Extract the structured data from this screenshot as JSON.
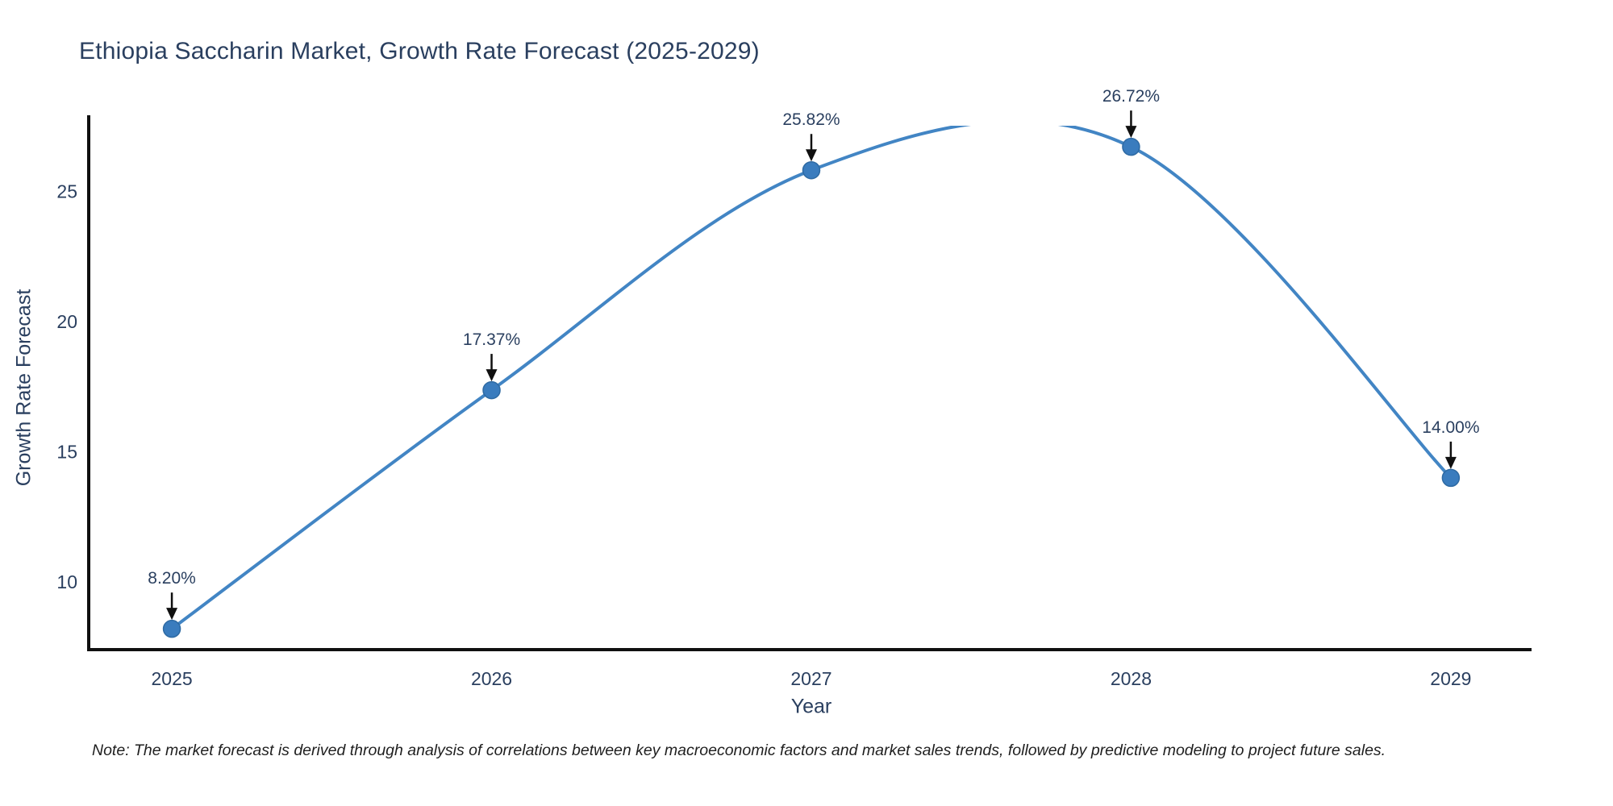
{
  "title": "Ethiopia Saccharin Market, Growth Rate Forecast (2025-2029)",
  "note": "Note: The market forecast is derived through analysis of correlations between key macroeconomic factors and market sales trends, followed by predictive modeling to project future sales.",
  "chart_data": {
    "type": "line",
    "line_shape": "spline",
    "title": "Ethiopia Saccharin Market, Growth Rate Forecast (2025-2029)",
    "xlabel": "Year",
    "ylabel": "Growth Rate Forecast",
    "x": [
      2025,
      2026,
      2027,
      2028,
      2029
    ],
    "values": [
      8.2,
      17.37,
      25.82,
      26.72,
      14.0
    ],
    "point_labels": [
      "8.20%",
      "17.37%",
      "25.82%",
      "26.72%",
      "14.00%"
    ],
    "xticks": [
      2025,
      2026,
      2027,
      2028,
      2029
    ],
    "yticks": [
      10,
      15,
      20,
      25
    ],
    "xlim": [
      2024.74,
      2029.25
    ],
    "ylim": [
      7.4,
      27.53
    ],
    "grid": false,
    "legend": false,
    "annotations_have_arrows": true,
    "colors": {
      "line": "#4285c4",
      "marker_fill": "#3a7cbe",
      "marker_edge": "#2e6aa3",
      "text": "#2a3f5f",
      "axis_line": "#101010",
      "arrow": "#101010",
      "note_text": "#1f1f1f",
      "background": "#ffffff"
    }
  }
}
